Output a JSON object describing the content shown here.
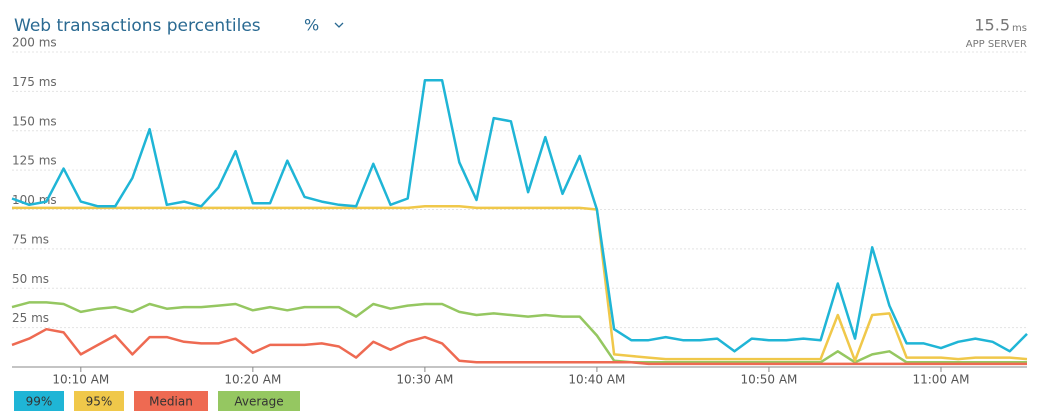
{
  "chart_data": {
    "type": "line",
    "title": "Web transactions percentiles",
    "selector": "%",
    "summary_value": "15.5",
    "summary_unit": "ms",
    "summary_label": "APP SERVER",
    "categories": [
      null,
      null,
      null,
      null,
      "10:10 AM",
      null,
      null,
      null,
      null,
      null,
      null,
      null,
      null,
      null,
      "10:20 AM",
      null,
      null,
      null,
      null,
      null,
      null,
      null,
      null,
      null,
      "10:30 AM",
      null,
      null,
      null,
      null,
      null,
      null,
      null,
      null,
      null,
      "10:40 AM",
      null,
      null,
      null,
      null,
      null,
      null,
      null,
      null,
      null,
      "10:50 AM",
      null,
      null,
      null,
      null,
      null,
      null,
      null,
      null,
      null,
      "11:00 AM",
      null,
      null,
      null,
      null,
      null
    ],
    "series": [
      {
        "name": "99%",
        "color": "#1fb5d6",
        "values": [
          107,
          103,
          105,
          126,
          105,
          102,
          102,
          120,
          151,
          103,
          105,
          102,
          114,
          137,
          104,
          104,
          131,
          108,
          105,
          103,
          102,
          129,
          103,
          107,
          182,
          182,
          130,
          106,
          158,
          156,
          111,
          146,
          110,
          134,
          100,
          24,
          17,
          17,
          19,
          17,
          17,
          18,
          10,
          18,
          17,
          17,
          18,
          17,
          53,
          18,
          76,
          39,
          15,
          15,
          12,
          16,
          18,
          16,
          10,
          21
        ]
      },
      {
        "name": "95%",
        "color": "#f0c84a",
        "values": [
          101,
          101,
          101,
          101,
          101,
          101,
          101,
          101,
          101,
          101,
          101,
          101,
          101,
          101,
          101,
          101,
          101,
          101,
          101,
          101,
          101,
          101,
          101,
          101,
          102,
          102,
          102,
          101,
          101,
          101,
          101,
          101,
          101,
          101,
          100,
          8,
          7,
          6,
          5,
          5,
          5,
          5,
          5,
          5,
          5,
          5,
          5,
          5,
          33,
          4,
          33,
          34,
          6,
          6,
          6,
          5,
          6,
          6,
          6,
          5
        ]
      },
      {
        "name": "Median",
        "color": "#ee6a52",
        "values": [
          14,
          18,
          24,
          22,
          8,
          14,
          20,
          8,
          19,
          19,
          16,
          15,
          15,
          18,
          9,
          14,
          14,
          14,
          15,
          13,
          6,
          16,
          11,
          16,
          19,
          15,
          4,
          3,
          3,
          3,
          3,
          3,
          3,
          3,
          3,
          3,
          3,
          2,
          2,
          2,
          2,
          2,
          2,
          2,
          2,
          2,
          2,
          2,
          2,
          2,
          2,
          2,
          2,
          2,
          2,
          2,
          2,
          2,
          2,
          2
        ]
      },
      {
        "name": "Average",
        "color": "#95c761",
        "values": [
          38,
          41,
          41,
          40,
          35,
          37,
          38,
          35,
          40,
          37,
          38,
          38,
          39,
          40,
          36,
          38,
          36,
          38,
          38,
          38,
          32,
          40,
          37,
          39,
          40,
          40,
          35,
          33,
          34,
          33,
          32,
          33,
          32,
          32,
          20,
          4,
          3,
          3,
          3,
          3,
          3,
          3,
          3,
          3,
          3,
          3,
          3,
          3,
          10,
          3,
          8,
          10,
          3,
          3,
          3,
          3,
          3,
          3,
          3,
          3
        ]
      }
    ],
    "ylim": [
      0,
      200
    ],
    "yticks": [
      {
        "value": 25,
        "label": "25 ms"
      },
      {
        "value": 50,
        "label": "50 ms"
      },
      {
        "value": 75,
        "label": "75 ms"
      },
      {
        "value": 100,
        "label": "100 ms"
      },
      {
        "value": 125,
        "label": "125 ms"
      },
      {
        "value": 150,
        "label": "150 ms"
      },
      {
        "value": 175,
        "label": "175 ms"
      },
      {
        "value": 200,
        "label": "200 ms"
      }
    ],
    "grid": true
  }
}
